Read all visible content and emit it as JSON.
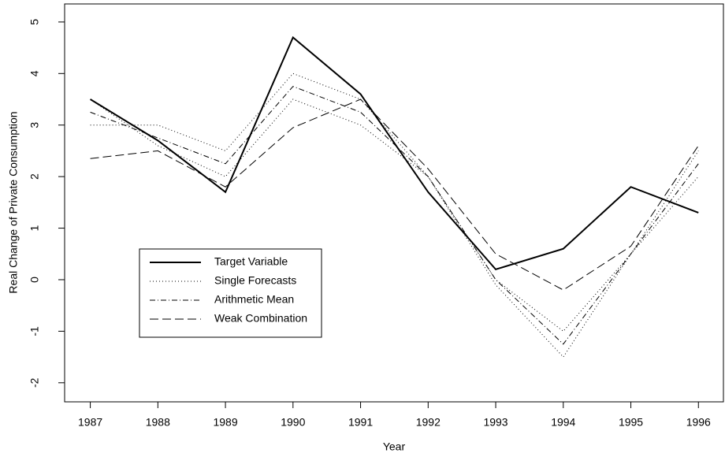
{
  "chart_data": {
    "type": "line",
    "x_label": "Year",
    "y_label": "Real Change of Private Consumption",
    "x": [
      1987,
      1988,
      1989,
      1990,
      1991,
      1992,
      1993,
      1994,
      1995,
      1996
    ],
    "xlim": [
      1986.62,
      1996.37
    ],
    "xticks": [
      1987,
      1988,
      1989,
      1990,
      1991,
      1992,
      1993,
      1994,
      1995,
      1996
    ],
    "ylim": [
      -2.37,
      5.35
    ],
    "yticks": [
      -2,
      -1,
      0,
      1,
      2,
      3,
      4,
      5
    ],
    "legend": "bottom-left",
    "series": [
      {
        "name": "Target Variable",
        "color": "#000000",
        "style": "solid",
        "width": 2,
        "values": [
          3.5,
          2.7,
          1.7,
          4.7,
          3.6,
          1.7,
          0.2,
          0.6,
          1.8,
          1.3
        ]
      },
      {
        "name": "Single Forecasts",
        "color": "#000000",
        "style": "dotted",
        "width": 1,
        "lines": [
          [
            3.0,
            3.0,
            2.5,
            4.0,
            3.5,
            2.0,
            0.0,
            -1.0,
            0.5,
            2.0
          ],
          [
            3.5,
            2.6,
            2.0,
            3.5,
            3.0,
            2.0,
            -0.1,
            -1.5,
            0.5,
            2.5
          ]
        ]
      },
      {
        "name": "Arithmetic Mean",
        "color": "#000000",
        "style": "dotdash",
        "width": 1,
        "values": [
          3.25,
          2.75,
          2.25,
          3.75,
          3.25,
          2.0,
          0.0,
          -1.25,
          0.5,
          2.25
        ]
      },
      {
        "name": "Weak Combination",
        "color": "#000000",
        "style": "dashed",
        "width": 1,
        "values": [
          2.35,
          2.5,
          1.8,
          2.95,
          3.5,
          2.15,
          0.5,
          -0.2,
          0.65,
          2.6
        ]
      }
    ]
  }
}
